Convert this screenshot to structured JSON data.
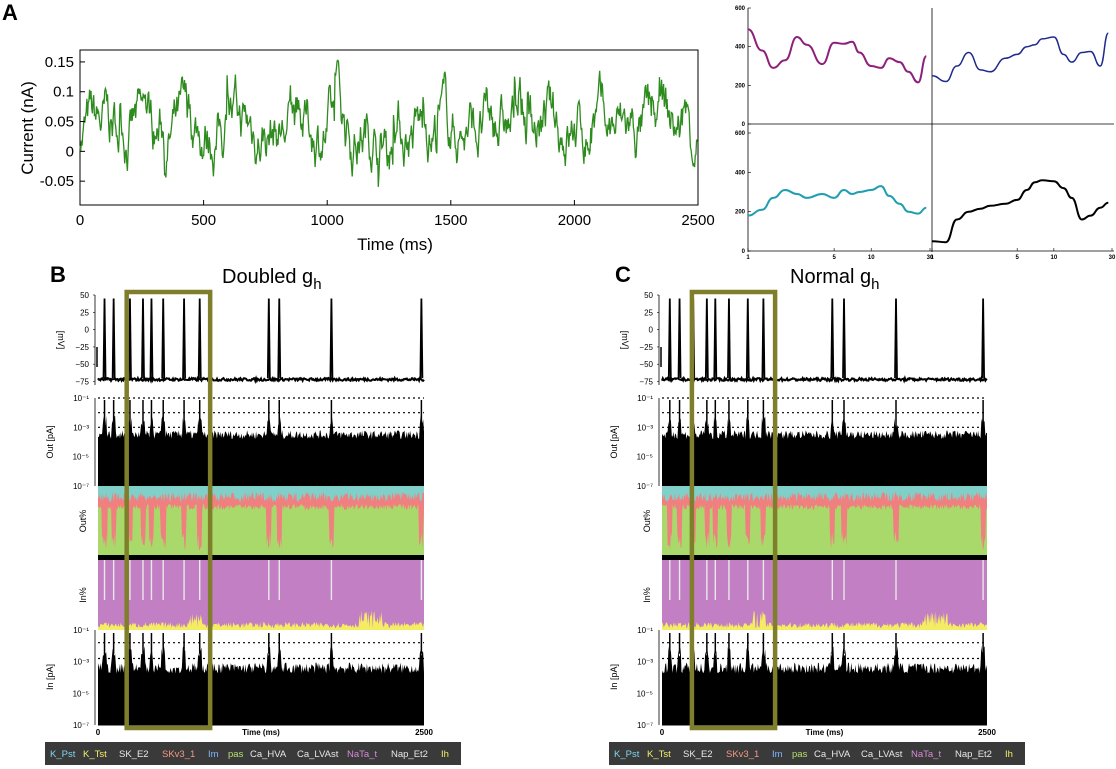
{
  "panel_labels": {
    "a": "A",
    "b": "B",
    "c": "C"
  },
  "colors": {
    "current": "#2e8b1e",
    "box": "#7f7f2b",
    "pink": "#f08080",
    "teal": "#80cfc8",
    "green": "#a9d96a",
    "purple": "#c27fc4",
    "yellow": "#f4ec62",
    "legend_bg": "#3a3a3a"
  },
  "chart_data": [
    {
      "id": "input-current",
      "type": "line",
      "xlabel": "Time (ms)",
      "ylabel": "Current (nA)",
      "xlim": [
        0,
        2500
      ],
      "ylim": [
        -0.09,
        0.17
      ],
      "xticks": [
        "0",
        "500",
        "1000",
        "1500",
        "2000",
        "2500"
      ],
      "yticks": [
        "-0.05",
        "0",
        "0.05",
        "0.1",
        "0.15"
      ],
      "series": [
        {
          "name": "input current",
          "color": "#2e8b1e",
          "n_points": 900
        }
      ]
    },
    {
      "id": "small-multiples",
      "type": "line",
      "xscale": "log",
      "xlim": [
        1,
        30
      ],
      "ylim": [
        0,
        600
      ],
      "xticks": [
        "1",
        "5",
        "10",
        "30"
      ],
      "yticks": [
        "0",
        "200",
        "400",
        "600"
      ],
      "series": [
        {
          "name": "top-left",
          "color": "#8e1f7b",
          "x": [
            1,
            1.3,
            1.6,
            2,
            2.5,
            3,
            4,
            5,
            6,
            7,
            8,
            10,
            12,
            14,
            17,
            20,
            24,
            28
          ],
          "y": [
            490,
            380,
            290,
            330,
            450,
            410,
            310,
            420,
            415,
            425,
            370,
            300,
            290,
            340,
            320,
            270,
            215,
            350
          ]
        },
        {
          "name": "top-right",
          "color": "#1f2a8e",
          "x": [
            1,
            1.3,
            1.6,
            2,
            2.5,
            3,
            4,
            5,
            6,
            7,
            8,
            10,
            12,
            14,
            17,
            20,
            24,
            28
          ],
          "y": [
            250,
            220,
            300,
            370,
            280,
            270,
            340,
            360,
            400,
            410,
            440,
            450,
            360,
            320,
            370,
            375,
            300,
            470
          ]
        },
        {
          "name": "bottom-left",
          "color": "#1e9fb0",
          "x": [
            1,
            1.3,
            1.6,
            2,
            2.5,
            3,
            4,
            5,
            6,
            7,
            8,
            10,
            12,
            14,
            17,
            20,
            24,
            28
          ],
          "y": [
            180,
            210,
            270,
            310,
            290,
            270,
            290,
            270,
            310,
            290,
            300,
            310,
            330,
            280,
            240,
            200,
            190,
            220
          ]
        },
        {
          "name": "bottom-right",
          "color": "#000000",
          "x": [
            1,
            1.3,
            1.6,
            2,
            2.5,
            3,
            4,
            5,
            6,
            7,
            8,
            10,
            12,
            14,
            17,
            20,
            24,
            28
          ],
          "y": [
            50,
            45,
            160,
            200,
            215,
            230,
            240,
            260,
            310,
            350,
            360,
            355,
            320,
            270,
            160,
            180,
            220,
            245
          ]
        }
      ]
    },
    {
      "id": "doubled-gh",
      "type": "area",
      "title": "Doubled g",
      "title_sub": "h",
      "xlabel": "Time (ms)",
      "xlim": [
        0,
        2500
      ],
      "xticks": [
        "0",
        "2500"
      ],
      "rows": [
        {
          "ylabel": "[mV]",
          "yticks": [
            "50",
            "25",
            "0",
            "−25",
            "−50",
            "−75"
          ]
        },
        {
          "ylabel": "Out [pA]",
          "yticks": [
            "10⁻¹",
            "10⁻³",
            "10⁻⁵",
            "10⁻⁷"
          ]
        },
        {
          "ylabel": "Out%"
        },
        {
          "ylabel": "In%"
        },
        {
          "ylabel": "In [pA]",
          "yticks": [
            "10⁻¹",
            "10⁻³",
            "10⁻⁵",
            "10⁻⁷"
          ]
        }
      ],
      "spike_times_ms": [
        50,
        120,
        245,
        345,
        410,
        500,
        660,
        780,
        1310,
        1390,
        1790,
        2480
      ],
      "highlight_ms": [
        220,
        860
      ]
    },
    {
      "id": "normal-gh",
      "type": "area",
      "title": "Normal g",
      "title_sub": "h",
      "xlabel": "Time (ms)",
      "xlim": [
        0,
        2500
      ],
      "xticks": [
        "0",
        "2500"
      ],
      "rows": [
        {
          "ylabel": "[mV]",
          "yticks": [
            "50",
            "25",
            "0",
            "−25",
            "−50",
            "−75"
          ]
        },
        {
          "ylabel": "Out [pA]",
          "yticks": [
            "10⁻¹",
            "10⁻³",
            "10⁻⁵",
            "10⁻⁷"
          ]
        },
        {
          "ylabel": "Out%"
        },
        {
          "ylabel": "In%"
        },
        {
          "ylabel": "In [pA]",
          "yticks": [
            "10⁻¹",
            "10⁻³",
            "10⁻⁵",
            "10⁻⁷"
          ]
        }
      ],
      "spike_times_ms": [
        60,
        135,
        240,
        345,
        410,
        515,
        660,
        780,
        1310,
        1400,
        1800,
        2470
      ],
      "highlight_ms": [
        230,
        870
      ]
    }
  ],
  "legend": [
    {
      "label": "K_Pst",
      "color": "#7fd6f0"
    },
    {
      "label": "K_Tst",
      "color": "#f2ee6a"
    },
    {
      "label": "SK_E2",
      "color": "#e8e8e8"
    },
    {
      "label": "SKv3_1",
      "color": "#f49a82"
    },
    {
      "label": "Im",
      "color": "#7ab8ff"
    },
    {
      "label": "pas",
      "color": "#b4e06e"
    },
    {
      "label": "Ca_HVA",
      "color": "#e8e8e8"
    },
    {
      "label": "Ca_LVAst",
      "color": "#e8e8e8"
    },
    {
      "label": "NaTa_t",
      "color": "#d88ad8"
    },
    {
      "label": "Nap_Et2",
      "color": "#e8e8e8"
    },
    {
      "label": "Ih",
      "color": "#f2ee6a"
    }
  ]
}
